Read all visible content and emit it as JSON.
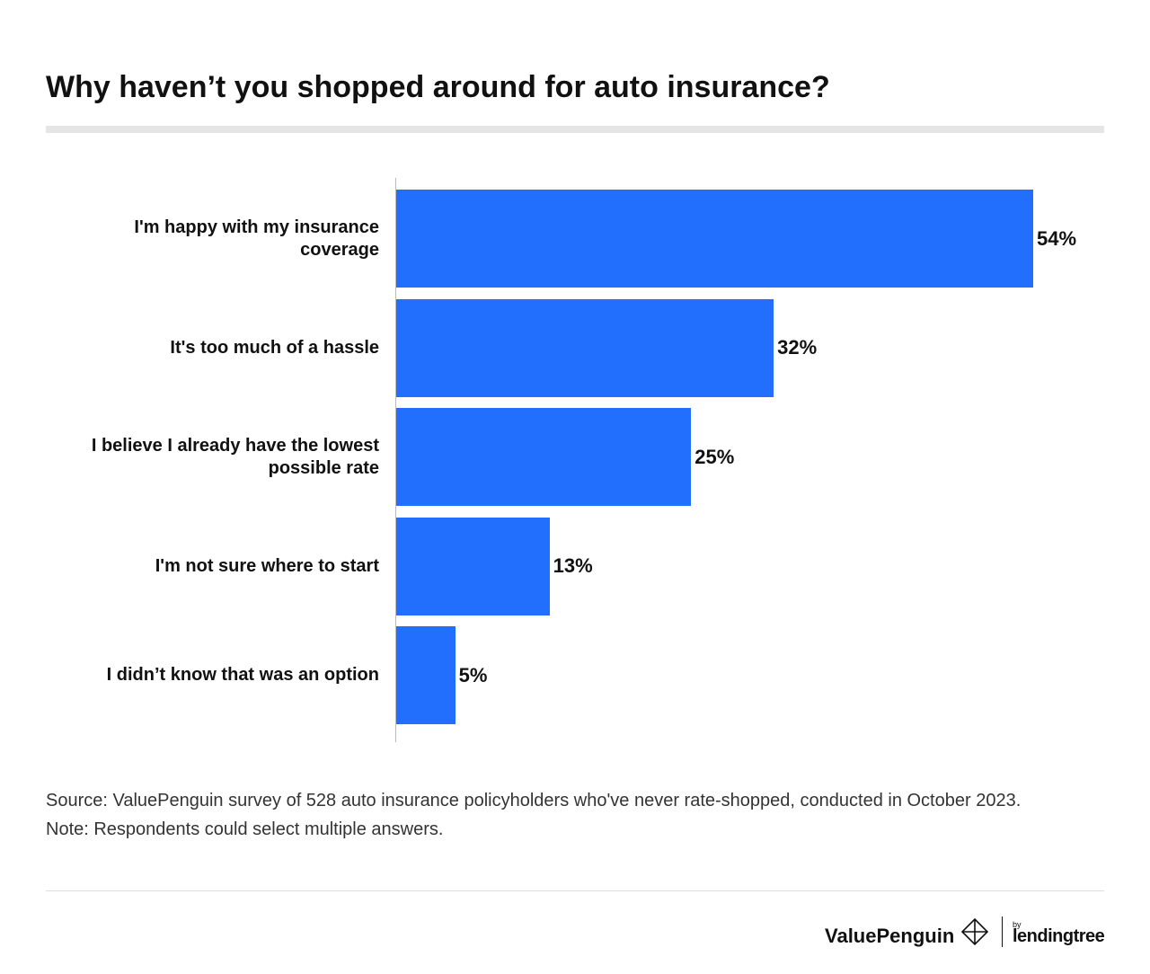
{
  "chart_data": {
    "type": "bar",
    "orientation": "horizontal",
    "title": "Why haven’t you shopped around for auto insurance?",
    "categories": [
      "I'm happy with my insurance coverage",
      "It's too much of a hassle",
      "I believe I already have the lowest possible rate",
      "I'm not sure where to start",
      "I didn’t know that was an option"
    ],
    "values": [
      54,
      32,
      25,
      13,
      5
    ],
    "value_labels": [
      "54%",
      "32%",
      "25%",
      "13%",
      "5%"
    ],
    "color": "#226ffe",
    "source": "Source: ValuePenguin survey of 528 auto insurance policyholders who've never rate-shopped, conducted in October 2023.",
    "note": "Note: Respondents could select multiple answers."
  },
  "footer": {
    "brand": "ValuePenguin",
    "by": "by",
    "partner": "lendingtree"
  }
}
